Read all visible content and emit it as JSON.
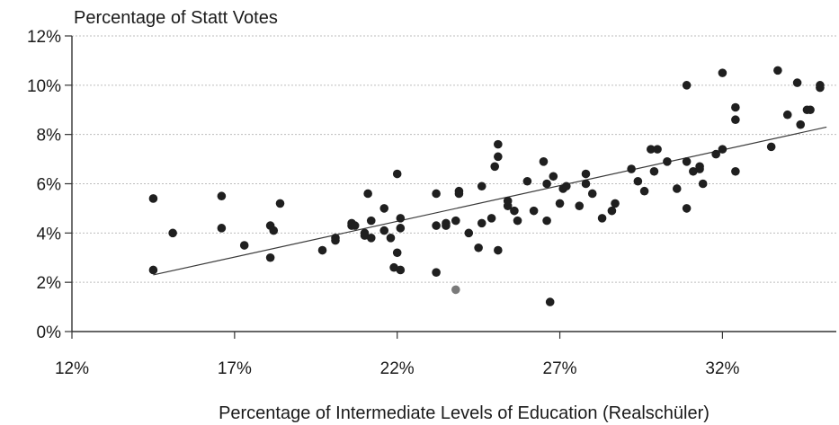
{
  "chart_data": {
    "type": "scatter",
    "title": "Percentage of Statt Votes",
    "xlabel": "Percentage of Intermediate Levels of Education (Realschüler)",
    "ylabel": "Percentage of Statt Votes",
    "xlim": [
      12,
      35.5
    ],
    "ylim": [
      0,
      12
    ],
    "x_ticks": [
      12,
      17,
      22,
      27,
      32
    ],
    "x_tick_labels": [
      "12%",
      "17%",
      "22%",
      "27%",
      "32%"
    ],
    "y_ticks": [
      0,
      2,
      4,
      6,
      8,
      10,
      12
    ],
    "y_tick_labels": [
      "0%",
      "2%",
      "4%",
      "6%",
      "8%",
      "10%",
      "12%"
    ],
    "grid": "horizontal",
    "legend": "none",
    "colors": {
      "point": "#1f1f1f",
      "point_alt": "#7a7a7a",
      "trend": "#3a3a3a",
      "grid": "#bdbdbd",
      "axis": "#333333"
    },
    "trendline": {
      "x": [
        14.5,
        35.2
      ],
      "y": [
        2.3,
        8.3
      ]
    },
    "points": [
      {
        "x": 14.5,
        "y": 5.4
      },
      {
        "x": 14.5,
        "y": 2.5
      },
      {
        "x": 15.1,
        "y": 4.0
      },
      {
        "x": 16.6,
        "y": 5.5
      },
      {
        "x": 16.6,
        "y": 4.2
      },
      {
        "x": 17.3,
        "y": 3.5
      },
      {
        "x": 18.1,
        "y": 4.3
      },
      {
        "x": 18.2,
        "y": 4.1
      },
      {
        "x": 18.1,
        "y": 3.0
      },
      {
        "x": 18.4,
        "y": 5.2
      },
      {
        "x": 19.7,
        "y": 3.3
      },
      {
        "x": 20.1,
        "y": 3.8
      },
      {
        "x": 20.1,
        "y": 3.7
      },
      {
        "x": 20.6,
        "y": 4.3
      },
      {
        "x": 20.6,
        "y": 4.4
      },
      {
        "x": 20.7,
        "y": 4.3
      },
      {
        "x": 21.0,
        "y": 4.0
      },
      {
        "x": 21.0,
        "y": 3.9
      },
      {
        "x": 21.1,
        "y": 5.6
      },
      {
        "x": 21.2,
        "y": 4.5
      },
      {
        "x": 21.2,
        "y": 3.8
      },
      {
        "x": 21.6,
        "y": 5.0
      },
      {
        "x": 21.6,
        "y": 4.1
      },
      {
        "x": 21.8,
        "y": 3.8
      },
      {
        "x": 21.9,
        "y": 2.6
      },
      {
        "x": 22.0,
        "y": 6.4
      },
      {
        "x": 22.0,
        "y": 3.2
      },
      {
        "x": 22.1,
        "y": 4.2
      },
      {
        "x": 22.1,
        "y": 4.6
      },
      {
        "x": 22.1,
        "y": 2.5
      },
      {
        "x": 23.2,
        "y": 5.6
      },
      {
        "x": 23.2,
        "y": 4.3
      },
      {
        "x": 23.2,
        "y": 2.4
      },
      {
        "x": 23.5,
        "y": 4.4
      },
      {
        "x": 23.5,
        "y": 4.3
      },
      {
        "x": 23.8,
        "y": 4.5
      },
      {
        "x": 23.9,
        "y": 5.7
      },
      {
        "x": 23.9,
        "y": 5.6
      },
      {
        "x": 23.8,
        "y": 1.7,
        "alt": true
      },
      {
        "x": 24.2,
        "y": 4.0
      },
      {
        "x": 24.5,
        "y": 3.4
      },
      {
        "x": 24.6,
        "y": 4.4
      },
      {
        "x": 24.6,
        "y": 5.9
      },
      {
        "x": 24.9,
        "y": 4.6
      },
      {
        "x": 25.1,
        "y": 7.6
      },
      {
        "x": 25.1,
        "y": 7.1
      },
      {
        "x": 25.0,
        "y": 6.7
      },
      {
        "x": 25.1,
        "y": 3.3
      },
      {
        "x": 25.4,
        "y": 5.1
      },
      {
        "x": 25.4,
        "y": 5.3
      },
      {
        "x": 25.6,
        "y": 4.9
      },
      {
        "x": 25.7,
        "y": 4.5
      },
      {
        "x": 26.0,
        "y": 6.1
      },
      {
        "x": 26.2,
        "y": 4.9
      },
      {
        "x": 26.5,
        "y": 6.9
      },
      {
        "x": 26.6,
        "y": 6.0
      },
      {
        "x": 26.6,
        "y": 4.5
      },
      {
        "x": 26.7,
        "y": 1.2
      },
      {
        "x": 26.8,
        "y": 6.3
      },
      {
        "x": 27.0,
        "y": 5.2
      },
      {
        "x": 27.1,
        "y": 5.8
      },
      {
        "x": 27.2,
        "y": 5.9
      },
      {
        "x": 27.6,
        "y": 5.1
      },
      {
        "x": 27.8,
        "y": 6.0
      },
      {
        "x": 27.8,
        "y": 6.4
      },
      {
        "x": 28.0,
        "y": 5.6
      },
      {
        "x": 28.3,
        "y": 4.6
      },
      {
        "x": 28.6,
        "y": 4.9
      },
      {
        "x": 28.7,
        "y": 5.2
      },
      {
        "x": 29.2,
        "y": 6.6
      },
      {
        "x": 29.4,
        "y": 6.1
      },
      {
        "x": 29.6,
        "y": 5.7
      },
      {
        "x": 29.8,
        "y": 7.4
      },
      {
        "x": 29.9,
        "y": 6.5
      },
      {
        "x": 30.0,
        "y": 7.4
      },
      {
        "x": 30.3,
        "y": 6.9
      },
      {
        "x": 30.6,
        "y": 5.8
      },
      {
        "x": 30.9,
        "y": 10.0
      },
      {
        "x": 30.9,
        "y": 6.9
      },
      {
        "x": 30.9,
        "y": 5.0
      },
      {
        "x": 31.1,
        "y": 6.5
      },
      {
        "x": 31.3,
        "y": 6.6
      },
      {
        "x": 31.3,
        "y": 6.7
      },
      {
        "x": 31.4,
        "y": 6.0
      },
      {
        "x": 31.8,
        "y": 7.2
      },
      {
        "x": 32.0,
        "y": 7.4
      },
      {
        "x": 32.0,
        "y": 10.5
      },
      {
        "x": 32.4,
        "y": 9.1
      },
      {
        "x": 32.4,
        "y": 8.6
      },
      {
        "x": 32.4,
        "y": 6.5
      },
      {
        "x": 33.5,
        "y": 7.5
      },
      {
        "x": 33.7,
        "y": 10.6
      },
      {
        "x": 34.0,
        "y": 8.8
      },
      {
        "x": 34.3,
        "y": 10.1
      },
      {
        "x": 34.4,
        "y": 8.4
      },
      {
        "x": 34.6,
        "y": 9.0
      },
      {
        "x": 34.7,
        "y": 9.0
      },
      {
        "x": 35.0,
        "y": 10.0
      },
      {
        "x": 35.0,
        "y": 9.9
      }
    ]
  }
}
